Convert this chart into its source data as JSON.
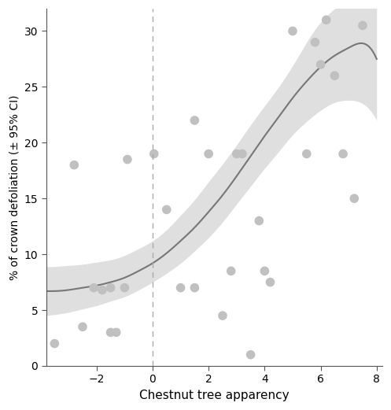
{
  "scatter_x": [
    -3.5,
    -2.8,
    -2.5,
    -2.1,
    -1.8,
    -1.5,
    -1.5,
    -1.3,
    -1.0,
    -0.9,
    0.05,
    0.5,
    1.0,
    1.5,
    1.5,
    2.0,
    2.5,
    2.8,
    3.0,
    3.2,
    3.5,
    3.8,
    4.0,
    4.2,
    5.0,
    5.5,
    5.8,
    6.0,
    6.2,
    6.5,
    6.8,
    7.2,
    7.5
  ],
  "scatter_y": [
    2.0,
    18.0,
    3.5,
    7.0,
    6.8,
    7.0,
    3.0,
    3.0,
    7.0,
    18.5,
    19.0,
    14.0,
    7.0,
    7.0,
    22.0,
    19.0,
    4.5,
    8.5,
    19.0,
    19.0,
    1.0,
    13.0,
    8.5,
    7.5,
    30.0,
    19.0,
    29.0,
    27.0,
    31.0,
    26.0,
    19.0,
    15.0,
    30.5
  ],
  "dot_color": "#c0c0c0",
  "dot_edgecolor": "none",
  "dot_size": 70,
  "curve_color": "#777777",
  "ci_color": "#d8d8d8",
  "ci_alpha": 0.8,
  "dashed_line_x": 0.0,
  "xlabel": "Chestnut tree apparency",
  "ylabel": "% of crown defoliation (± 95% CI)",
  "xlim": [
    -3.8,
    8.2
  ],
  "ylim": [
    0,
    32
  ],
  "xticks": [
    -2,
    0,
    2,
    4,
    6,
    8
  ],
  "yticks": [
    0,
    5,
    10,
    15,
    20,
    25,
    30
  ],
  "figsize": [
    4.97,
    5.21
  ],
  "dpi": 100,
  "curve_x": [
    -3.8,
    -3.5,
    -3.0,
    -2.5,
    -2.0,
    -1.5,
    -1.0,
    -0.5,
    0.0,
    0.5,
    1.0,
    1.5,
    2.0,
    2.5,
    3.0,
    3.5,
    4.0,
    4.5,
    5.0,
    5.5,
    6.0,
    6.5,
    7.0,
    7.5,
    8.0
  ],
  "curve_y": [
    6.7,
    6.7,
    6.8,
    7.0,
    7.2,
    7.5,
    7.9,
    8.5,
    9.2,
    10.1,
    11.2,
    12.4,
    13.8,
    15.3,
    17.0,
    18.8,
    20.6,
    22.3,
    24.0,
    25.5,
    26.8,
    27.8,
    28.5,
    28.9,
    27.5
  ],
  "ci_lower": [
    4.5,
    4.6,
    4.8,
    5.1,
    5.4,
    5.8,
    6.2,
    6.8,
    7.5,
    8.3,
    9.2,
    10.3,
    11.5,
    12.9,
    14.5,
    16.1,
    17.7,
    19.2,
    20.7,
    21.9,
    22.9,
    23.6,
    23.8,
    23.5,
    22.0
  ],
  "ci_upper": [
    8.9,
    8.9,
    9.0,
    9.1,
    9.3,
    9.5,
    9.9,
    10.5,
    11.2,
    12.2,
    13.5,
    14.9,
    16.5,
    18.1,
    19.8,
    21.6,
    23.3,
    25.0,
    26.9,
    29.0,
    30.8,
    32.0,
    33.0,
    34.0,
    33.0
  ]
}
